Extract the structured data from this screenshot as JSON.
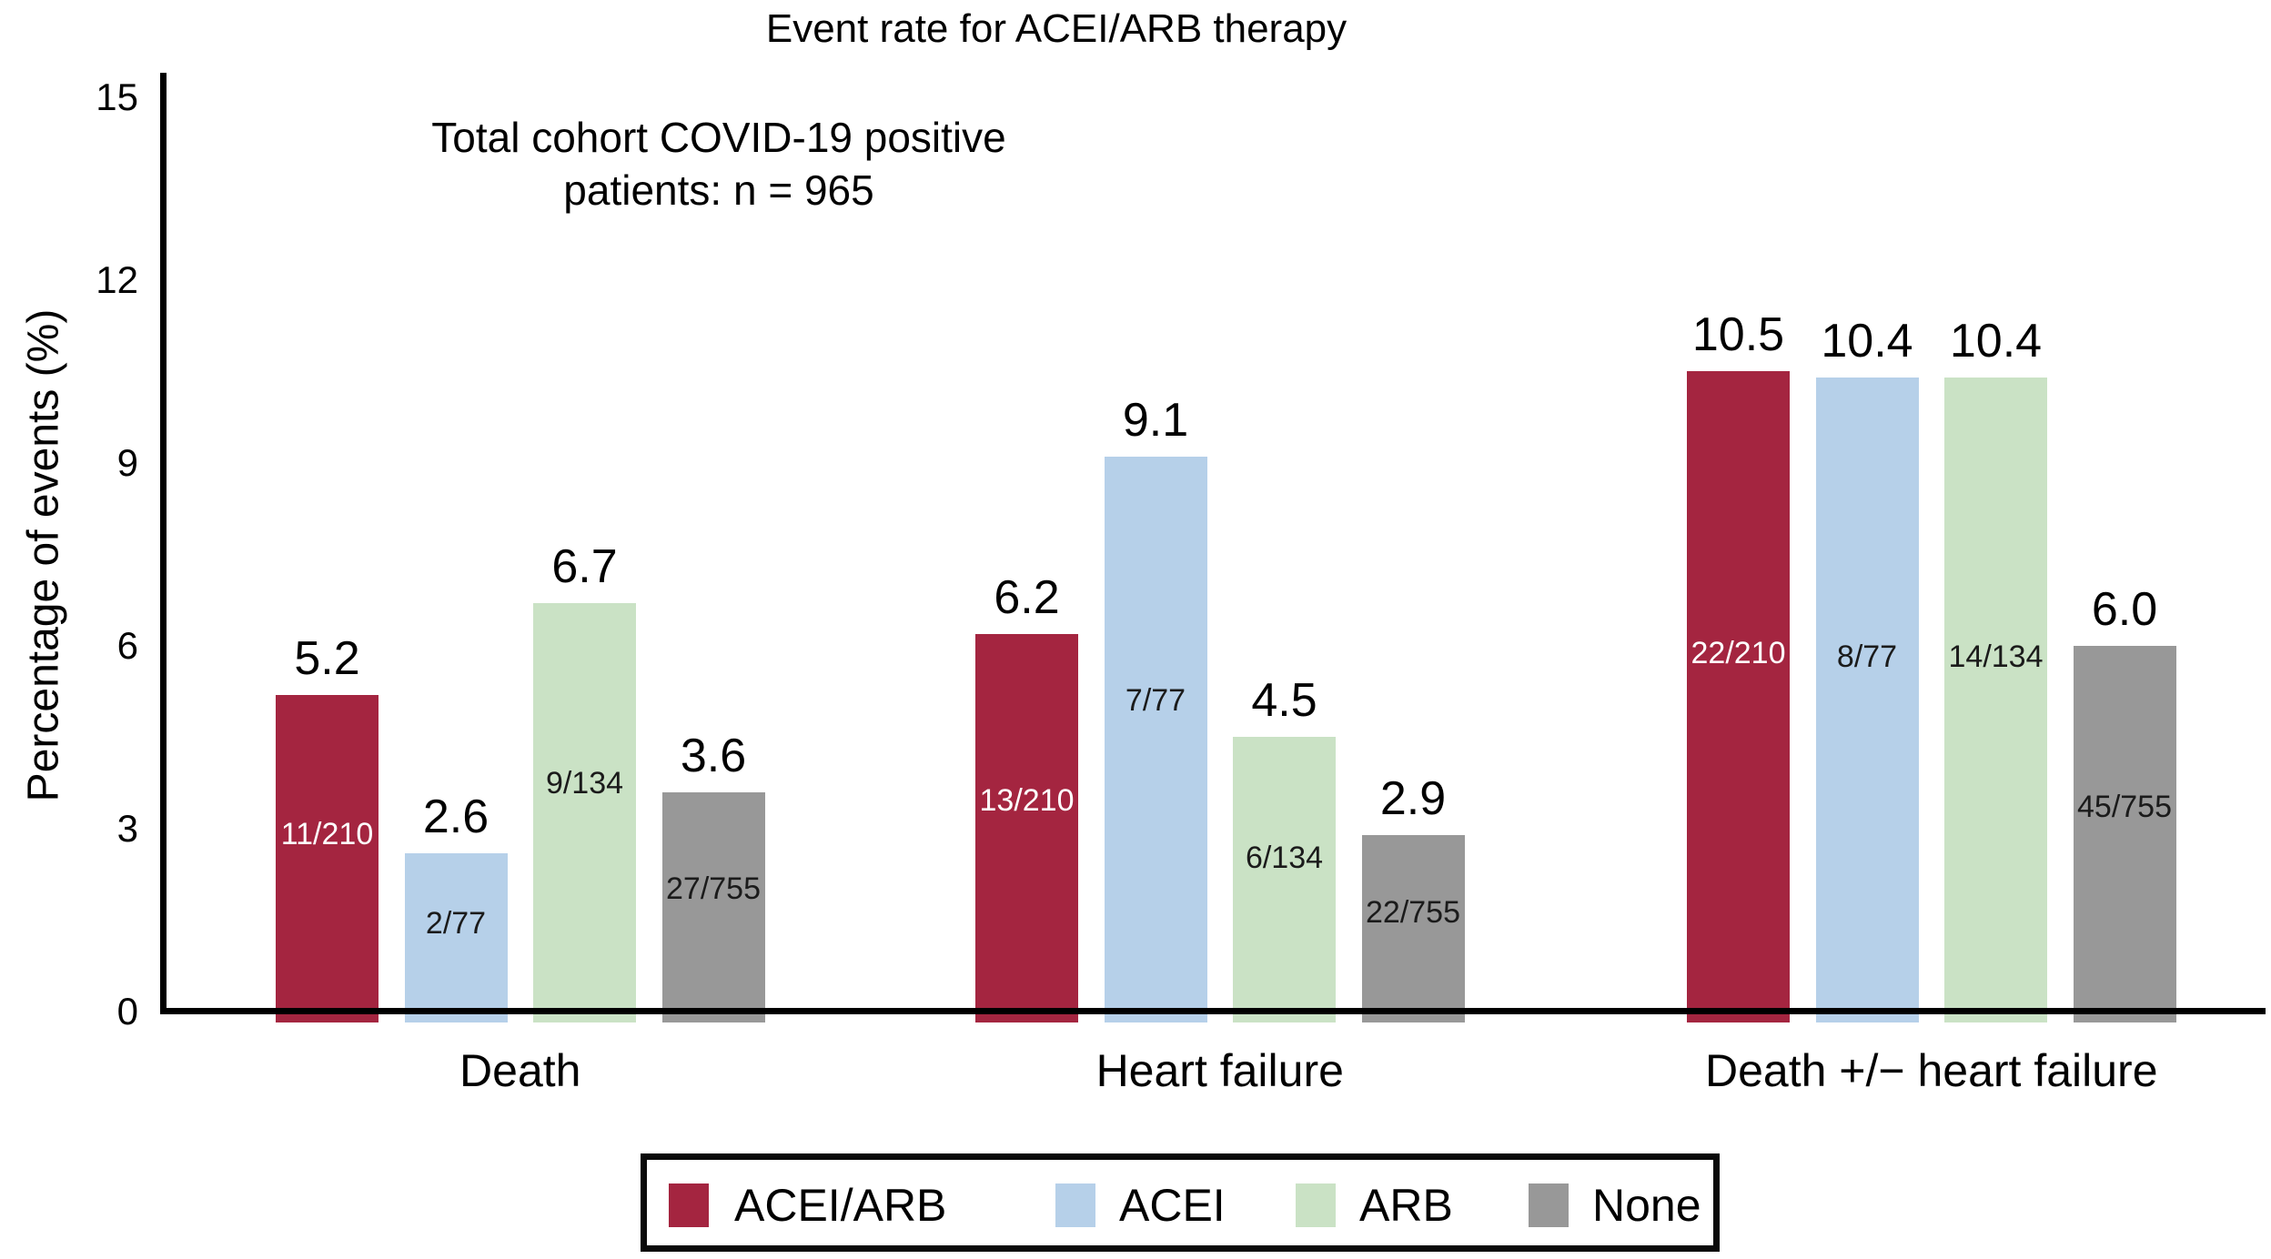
{
  "title": "Event rate for ACEI/ARB therapy",
  "annotation": {
    "line1": "Total cohort COVID-19 positive",
    "line2": "patients: n = 965"
  },
  "chart_data": {
    "type": "bar",
    "title": "Event rate for ACEI/ARB therapy",
    "xlabel": "",
    "ylabel": "Percentage of events (%)",
    "ylim": [
      0,
      15
    ],
    "y_ticks": [
      0,
      3,
      6,
      9,
      12,
      15
    ],
    "grid": false,
    "legend_position": "bottom",
    "categories": [
      "Death",
      "Heart failure",
      "Death +/− heart failure"
    ],
    "series": [
      {
        "name": "ACEI/ARB",
        "color": "#A42540",
        "fraction_text_color": "#FFFFFF",
        "values": [
          5.2,
          6.2,
          10.5
        ],
        "fractions": [
          "11/210",
          "13/210",
          "22/210"
        ]
      },
      {
        "name": "ACEI",
        "color": "#B6D0E9",
        "fraction_text_color": "#1B1B1B",
        "values": [
          2.6,
          9.1,
          10.4
        ],
        "fractions": [
          "2/77",
          "7/77",
          "8/77"
        ]
      },
      {
        "name": "ARB",
        "color": "#CAE2C5",
        "fraction_text_color": "#1B1B1B",
        "values": [
          6.7,
          4.5,
          10.4
        ],
        "fractions": [
          "9/134",
          "6/134",
          "14/134"
        ]
      },
      {
        "name": "None",
        "color": "#989898",
        "fraction_text_color": "#1B1B1B",
        "values": [
          3.6,
          2.9,
          6.0
        ],
        "fractions": [
          "27/755",
          "22/755",
          "45/755"
        ]
      }
    ],
    "value_label_color": "#000000",
    "axis_color": "#000000"
  }
}
